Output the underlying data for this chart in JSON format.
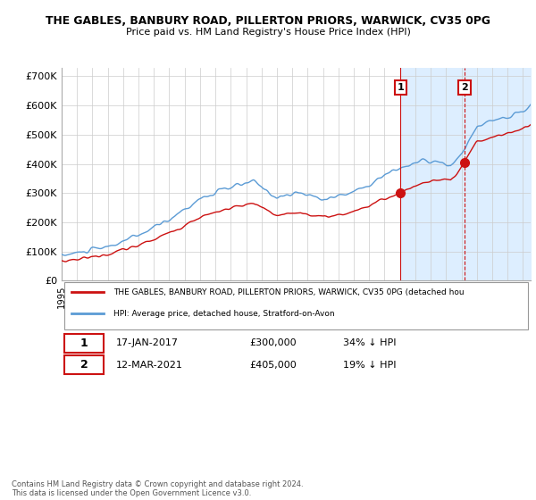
{
  "title_line1": "THE GABLES, BANBURY ROAD, PILLERTON PRIORS, WARWICK, CV35 0PG",
  "title_line2": "Price paid vs. HM Land Registry's House Price Index (HPI)",
  "ylabel_ticks": [
    "£0",
    "£100K",
    "£200K",
    "£300K",
    "£400K",
    "£500K",
    "£600K",
    "£700K"
  ],
  "ytick_vals": [
    0,
    100000,
    200000,
    300000,
    400000,
    500000,
    600000,
    700000
  ],
  "ylim": [
    0,
    730000
  ],
  "hpi_color": "#5b9bd5",
  "price_color": "#cc1111",
  "vline1_color": "#cc1111",
  "vline2_color": "#cc1111",
  "shade_color": "#ddeeff",
  "background_color": "#ffffff",
  "grid_color": "#cccccc",
  "legend_label_red": "THE GABLES, BANBURY ROAD, PILLERTON PRIORS, WARWICK, CV35 0PG (detached hou",
  "legend_label_blue": "HPI: Average price, detached house, Stratford-on-Avon",
  "purchase1_date": "17-JAN-2017",
  "purchase1_price": 300000,
  "purchase1_pct": "34% ↓ HPI",
  "purchase1_year": 2017.04,
  "purchase2_date": "12-MAR-2021",
  "purchase2_price": 405000,
  "purchase2_pct": "19% ↓ HPI",
  "purchase2_year": 2021.2,
  "footnote": "Contains HM Land Registry data © Crown copyright and database right 2024.\nThis data is licensed under the Open Government Licence v3.0.",
  "xlim_start": 1995.0,
  "xlim_end": 2025.5
}
